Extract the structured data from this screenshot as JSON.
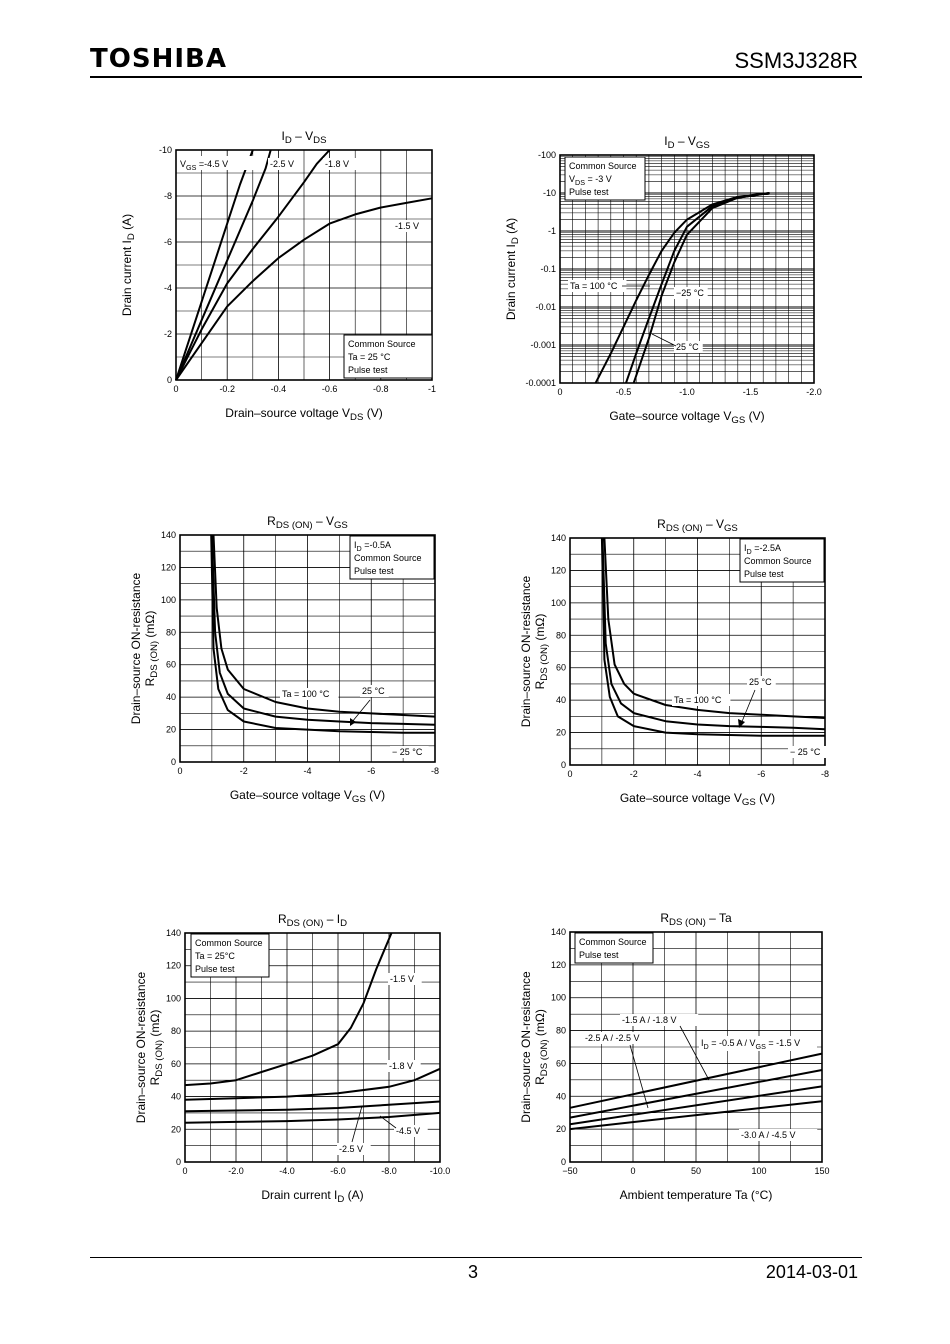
{
  "header": {
    "logo": "TOSHIBA",
    "part_number": "SSM3J328R"
  },
  "footer": {
    "page": "3",
    "date": "2014-03-01"
  },
  "chart_data": [
    {
      "type": "line",
      "title_main": "I",
      "title_sub": "D",
      "title_mid": " – V",
      "title_sub2": "DS",
      "xlabel": "Drain–source voltage   V",
      "xlabel_sub": "DS",
      "xlabel_unit": "   (V)",
      "ylabel": "Drain current   I",
      "ylabel_sub": "D",
      "ylabel_unit": "   (A)",
      "xlim": [
        0,
        -1
      ],
      "ylim": [
        0,
        -10
      ],
      "xticks": [
        0,
        -0.2,
        -0.4,
        -0.6,
        -0.8,
        -1
      ],
      "xticklabels": [
        "0",
        "-0.2",
        "-0.4",
        "-0.6",
        "-0.8",
        "-1"
      ],
      "yticks": [
        0,
        -2,
        -4,
        -6,
        -8,
        -10
      ],
      "yticklabels": [
        "0",
        "-2",
        "-4",
        "-6",
        "-8",
        "-10"
      ],
      "conditions": [
        "Common Source",
        "Ta = 25 °C",
        "Pulse test"
      ],
      "series": [
        {
          "name": "Vₓₛ = -4.5 V",
          "x": [
            0,
            -0.05,
            -0.1,
            -0.15,
            -0.2,
            -0.25,
            -0.3
          ],
          "y": [
            0,
            -1.7,
            -3.4,
            -5.1,
            -6.8,
            -8.5,
            -10
          ]
        },
        {
          "name": "-2.5 V",
          "x": [
            0,
            -0.05,
            -0.1,
            -0.15,
            -0.2,
            -0.25,
            -0.3,
            -0.35,
            -0.37
          ],
          "y": [
            0,
            -1.3,
            -2.6,
            -3.9,
            -5.2,
            -6.5,
            -7.8,
            -9.2,
            -10
          ]
        },
        {
          "name": "-1.8 V",
          "x": [
            0,
            -0.05,
            -0.1,
            -0.15,
            -0.2,
            -0.3,
            -0.4,
            -0.5,
            -0.55,
            -0.6
          ],
          "y": [
            0,
            -1.1,
            -2.2,
            -3.2,
            -4.2,
            -5.7,
            -7.1,
            -8.6,
            -9.4,
            -10
          ]
        },
        {
          "name": "-1.5 V",
          "x": [
            0,
            -0.05,
            -0.1,
            -0.15,
            -0.2,
            -0.3,
            -0.4,
            -0.5,
            -0.6,
            -0.7,
            -0.8,
            -0.9,
            -1
          ],
          "y": [
            0,
            -0.8,
            -1.6,
            -2.4,
            -3.2,
            -4.3,
            -5.3,
            -6.1,
            -6.8,
            -7.2,
            -7.5,
            -7.7,
            -7.9
          ]
        }
      ],
      "annotations": [
        "V",
        "GS",
        " =-4.5 V",
        "-2.5 V",
        "-1.8 V",
        "-1.5 V"
      ]
    },
    {
      "type": "line",
      "scale_y": "log",
      "title_main": "I",
      "title_sub": "D",
      "title_mid": " – V",
      "title_sub2": "GS",
      "xlabel": "Gate–source voltage   V",
      "xlabel_sub": "GS",
      "xlabel_unit": "   (V)",
      "ylabel": "Drain current   I",
      "ylabel_sub": "D",
      "ylabel_unit": "   (A)",
      "xlim": [
        0,
        -2.0
      ],
      "ylim": [
        -0.0001,
        -100
      ],
      "xticks": [
        0,
        -0.5,
        -1.0,
        -1.5,
        -2.0
      ],
      "xticklabels": [
        "0",
        "-0.5",
        "-1.0",
        "-1.5",
        "-2.0"
      ],
      "yticks": [
        -0.0001,
        -0.001,
        -0.01,
        -0.1,
        -1,
        -10,
        -100
      ],
      "yticklabels": [
        "-0.0001",
        "-0.001",
        "-0.01",
        "-0.1",
        "-1",
        "-10",
        "-100"
      ],
      "conditions": [
        "Common Source",
        "V",
        "DS",
        " = -3 V",
        "Pulse test"
      ],
      "series": [
        {
          "name": "Ta = 100 °C",
          "x": [
            -0.28,
            -0.4,
            -0.5,
            -0.6,
            -0.7,
            -0.8,
            -0.9,
            -1.0,
            -1.2,
            -1.4,
            -1.65
          ],
          "y": [
            -0.0001,
            -0.0006,
            -0.003,
            -0.015,
            -0.07,
            -0.3,
            -0.9,
            -2,
            -5,
            -8,
            -10
          ]
        },
        {
          "name": "25 °C",
          "x": [
            -0.52,
            -0.6,
            -0.7,
            -0.8,
            -0.9,
            -1.0,
            -1.2,
            -1.4,
            -1.65
          ],
          "y": [
            -0.0001,
            -0.0006,
            -0.005,
            -0.04,
            -0.3,
            -1.3,
            -4.5,
            -7.5,
            -10
          ]
        },
        {
          "name": "−25 °C",
          "x": [
            -0.58,
            -0.7,
            -0.8,
            -0.9,
            -1.0,
            -1.2,
            -1.4,
            -1.65
          ],
          "y": [
            -0.0001,
            -0.0015,
            -0.02,
            -0.15,
            -0.8,
            -4,
            -7.5,
            -10
          ]
        }
      ],
      "annotations": [
        "Ta = 100 °C",
        "−25 °C",
        "25 °C"
      ]
    },
    {
      "type": "line",
      "title_main": "R",
      "title_sub": "DS (ON)",
      "title_mid": " – V",
      "title_sub2": "GS",
      "xlabel": "Gate–source voltage   V",
      "xlabel_sub": "GS",
      "xlabel_unit": "   (V)",
      "ylabel": "Drain–source ON-resistance",
      "ylabel2": "R",
      "ylabel2_sub": "DS (ON)",
      "ylabel2_unit": "   (mΩ)",
      "xlim": [
        0,
        -8
      ],
      "ylim": [
        0,
        140
      ],
      "xticks": [
        0,
        -2,
        -4,
        -6,
        -8
      ],
      "xticklabels": [
        "0",
        "-2",
        "-4",
        "-6",
        "-8"
      ],
      "yticks": [
        0,
        20,
        40,
        60,
        80,
        100,
        120,
        140
      ],
      "yticklabels": [
        "0",
        "20",
        "40",
        "60",
        "80",
        "100",
        "120",
        "140"
      ],
      "conditions": [
        "I",
        "D",
        " =-0.5A",
        "Common Source",
        "Pulse test"
      ],
      "series": [
        {
          "name": "Ta = 100 °C",
          "x": [
            -1.05,
            -1.15,
            -1.3,
            -1.5,
            -2,
            -3,
            -4,
            -5,
            -6,
            -7,
            -8
          ],
          "y": [
            140,
            95,
            70,
            57,
            45,
            37,
            33,
            31,
            30,
            29,
            28
          ]
        },
        {
          "name": "25 °C",
          "x": [
            -1.0,
            -1.1,
            -1.25,
            -1.5,
            -2,
            -3,
            -4,
            -5,
            -6,
            -7,
            -8
          ],
          "y": [
            140,
            80,
            55,
            42,
            33,
            28,
            26,
            25,
            24,
            23.5,
            23
          ]
        },
        {
          "name": "−25 °C",
          "x": [
            -0.98,
            -1.05,
            -1.2,
            -1.5,
            -2,
            -3,
            -4,
            -5,
            -6,
            -7,
            -8
          ],
          "y": [
            140,
            70,
            45,
            32,
            25,
            21,
            20,
            19,
            18.5,
            18,
            18
          ]
        }
      ],
      "annotations": [
        "Ta = 100 °C",
        "25 °C",
        "− 25 °C"
      ]
    },
    {
      "type": "line",
      "title_main": "R",
      "title_sub": "DS (ON)",
      "title_mid": " – V",
      "title_sub2": "GS",
      "xlabel": "Gate–source voltage   V",
      "xlabel_sub": "GS",
      "xlabel_unit": "   (V)",
      "ylabel": "Drain–source ON-resistance",
      "ylabel2": "R",
      "ylabel2_sub": "DS (ON)",
      "ylabel2_unit": "   (mΩ)",
      "xlim": [
        0,
        -8
      ],
      "ylim": [
        0,
        140
      ],
      "xticks": [
        0,
        -2,
        -4,
        -6,
        -8
      ],
      "xticklabels": [
        "0",
        "-2",
        "-4",
        "-6",
        "-8"
      ],
      "yticks": [
        0,
        20,
        40,
        60,
        80,
        100,
        120,
        140
      ],
      "yticklabels": [
        "0",
        "20",
        "40",
        "60",
        "80",
        "100",
        "120",
        "140"
      ],
      "conditions": [
        "I",
        "D",
        " =-2.5A",
        "Common Source",
        "Pulse test"
      ],
      "series": [
        {
          "name": "Ta = 100 °C",
          "x": [
            -1.08,
            -1.2,
            -1.4,
            -1.7,
            -2,
            -3,
            -4,
            -5,
            -6,
            -7,
            -8
          ],
          "y": [
            140,
            90,
            62,
            50,
            44,
            37,
            34,
            32,
            31,
            30,
            29
          ]
        },
        {
          "name": "25 °C",
          "x": [
            -1.02,
            -1.12,
            -1.3,
            -1.6,
            -2,
            -3,
            -4,
            -5,
            -6,
            -7,
            -8
          ],
          "y": [
            140,
            75,
            50,
            38,
            32,
            27,
            25,
            24,
            23.5,
            23,
            22
          ]
        },
        {
          "name": "−25 °C",
          "x": [
            -1.0,
            -1.08,
            -1.25,
            -1.5,
            -2,
            -3,
            -4,
            -5,
            -6,
            -7,
            -8
          ],
          "y": [
            140,
            65,
            42,
            30,
            24,
            20,
            19,
            18.5,
            18,
            18,
            18
          ]
        }
      ],
      "annotations": [
        "Ta = 100 °C",
        "25 °C",
        "− 25 °C"
      ]
    },
    {
      "type": "line",
      "title_main": "R",
      "title_sub": "DS (ON)",
      "title_mid": " – I",
      "title_sub2": "D",
      "xlabel": "Drain current   I",
      "xlabel_sub": "D",
      "xlabel_unit": "   (A)",
      "ylabel": "Drain–source ON-resistance",
      "ylabel2": "R",
      "ylabel2_sub": "DS (ON)",
      "ylabel2_unit": "   (mΩ)",
      "xlim": [
        0,
        -10.0
      ],
      "ylim": [
        0,
        140
      ],
      "xticks": [
        0,
        -2.0,
        -4.0,
        -6.0,
        -8.0,
        -10.0
      ],
      "xticklabels": [
        "0",
        "-2.0",
        "-4.0",
        "-6.0",
        "-8.0",
        "-10.0"
      ],
      "yticks": [
        0,
        20,
        40,
        60,
        80,
        100,
        120,
        140
      ],
      "yticklabels": [
        "0",
        "20",
        "40",
        "60",
        "80",
        "100",
        "120",
        "140"
      ],
      "conditions": [
        "Common Source",
        "Ta = 25°C",
        "Pulse test"
      ],
      "series": [
        {
          "name": "-1.5 V",
          "x": [
            0,
            -1,
            -2,
            -3,
            -4,
            -5,
            -6,
            -6.5,
            -7,
            -7.5,
            -8.1
          ],
          "y": [
            47,
            48,
            50,
            55,
            60,
            65,
            72,
            82,
            97,
            118,
            140
          ]
        },
        {
          "name": "-1.8 V",
          "x": [
            0,
            -2,
            -4,
            -6,
            -8,
            -9,
            -10
          ],
          "y": [
            38,
            39,
            40,
            42,
            46,
            50,
            57
          ]
        },
        {
          "name": "-2.5 V",
          "x": [
            0,
            -2,
            -4,
            -6,
            -8,
            -10
          ],
          "y": [
            31,
            31.5,
            32,
            33,
            35,
            37
          ]
        },
        {
          "name": "-4.5 V",
          "x": [
            0,
            -2,
            -4,
            -6,
            -8,
            -10
          ],
          "y": [
            24,
            24.5,
            25,
            26,
            27.5,
            30
          ]
        }
      ],
      "annotations": [
        "-1.5 V",
        "-1.8 V",
        "-2.5 V",
        "-4.5 V"
      ]
    },
    {
      "type": "line",
      "title_main": "R",
      "title_sub": "DS (ON)",
      "title_mid": " – Ta",
      "title_sub2": "",
      "xlabel": "Ambient temperature    Ta    (°C)",
      "xlabel_sub": "",
      "xlabel_unit": "",
      "ylabel": "Drain–source ON-resistance",
      "ylabel2": "R",
      "ylabel2_sub": "DS (ON)",
      "ylabel2_unit": "   (mΩ)",
      "xlim": [
        -50,
        150
      ],
      "ylim": [
        0,
        140
      ],
      "xticks": [
        -50,
        0,
        50,
        100,
        150
      ],
      "xticklabels": [
        "−50",
        "0",
        "50",
        "100",
        "150"
      ],
      "yticks": [
        0,
        20,
        40,
        60,
        80,
        100,
        120,
        140
      ],
      "yticklabels": [
        "0",
        "20",
        "40",
        "60",
        "80",
        "100",
        "120",
        "140"
      ],
      "conditions": [
        "Common Source",
        "Pulse test"
      ],
      "series": [
        {
          "name": "Iₓ = -0.5 A / Vₓₛ = -1.5 V",
          "x": [
            -50,
            150
          ],
          "y": [
            33,
            66
          ]
        },
        {
          "name": "-1.5 A / -1.8 V",
          "x": [
            -50,
            150
          ],
          "y": [
            27,
            56
          ]
        },
        {
          "name": "-2.5 A / -2.5 V",
          "x": [
            -50,
            150
          ],
          "y": [
            23,
            46
          ]
        },
        {
          "name": "-3.0 A / -4.5 V",
          "x": [
            -50,
            150
          ],
          "y": [
            20,
            37
          ]
        }
      ],
      "annotations": [
        "-1.5 A / -1.8 V",
        "-2.5 A / -2.5 V",
        "I",
        "D",
        " = -0.5 A / V",
        "GS",
        " = -1.5 V",
        "-3.0 A / -4.5 V"
      ]
    }
  ]
}
